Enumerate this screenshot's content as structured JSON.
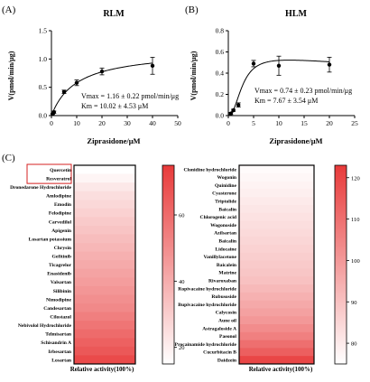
{
  "panels": {
    "A": {
      "letter": "(A)",
      "title": "RLM",
      "xlabel": "Ziprasidone/μM",
      "ylabel": "V(pmol/min/μg)",
      "annotation_line1": "Vmax = 1.16 ± 0.22 pmol/min/μg",
      "annotation_line2": "Km = 10.02 ± 4.53 μM"
    },
    "B": {
      "letter": "(B)",
      "title": "HLM",
      "xlabel": "Ziprasidone/μM",
      "ylabel": "V(pmol/min/μg)",
      "annotation_line1": "Vmax = 0.74 ± 0.23 pmol/min/μg",
      "annotation_line2": "Km = 7.67 ± 3.54 μM"
    },
    "C": {
      "letter": "(C)",
      "left_xlabel": "Relative activity(100%)",
      "right_xlabel": "Relative activity(100%)"
    }
  },
  "chart_data": [
    {
      "type": "scatter",
      "panel": "A",
      "title": "RLM",
      "xlabel": "Ziprasidone/μM",
      "ylabel": "V(pmol/min/μg)",
      "xlim": [
        0,
        50
      ],
      "ylim": [
        0,
        1.5
      ],
      "xticks": [
        0,
        10,
        20,
        30,
        40,
        50
      ],
      "yticks": [
        0.0,
        0.5,
        1.0,
        1.5
      ],
      "x": [
        0.5,
        1,
        5,
        10,
        20,
        40
      ],
      "y": [
        0.03,
        0.06,
        0.42,
        0.58,
        0.78,
        0.88
      ],
      "err": [
        0.01,
        0.02,
        0.03,
        0.05,
        0.06,
        0.15
      ],
      "fit": {
        "model": "Michaelis-Menten",
        "vmax": 1.16,
        "km": 10.02
      }
    },
    {
      "type": "scatter",
      "panel": "B",
      "title": "HLM",
      "xlabel": "Ziprasidone/μM",
      "ylabel": "V(pmol/min/μg)",
      "xlim": [
        0,
        25
      ],
      "ylim": [
        0,
        0.8
      ],
      "xticks": [
        0,
        5,
        10,
        15,
        20,
        25
      ],
      "yticks": [
        0.0,
        0.2,
        0.4,
        0.6,
        0.8
      ],
      "x": [
        0.5,
        1,
        2,
        5,
        10,
        20
      ],
      "y": [
        0.02,
        0.05,
        0.1,
        0.49,
        0.47,
        0.48
      ],
      "err": [
        0.01,
        0.01,
        0.02,
        0.03,
        0.09,
        0.07
      ],
      "fit": {
        "model": "substrate-inhibition",
        "vmax": 0.74,
        "km": 7.67
      }
    },
    {
      "type": "heatmap",
      "panel": "C-left",
      "xlabel": "Relative activity(100%)",
      "colorbar_range": [
        15,
        75
      ],
      "colorbar_ticks": [
        20,
        40,
        60
      ],
      "highlighted": [
        "Quercetin",
        "Resveratrol"
      ],
      "categories": [
        "Quercetin",
        "Resveratrol",
        "Dronedarone Hydrochloride",
        "Amlodipine",
        "Emodin",
        "Felodipine",
        "Carvedilol",
        "Apigenin",
        "Losartan potassium",
        "Chrysin",
        "Gefitinib",
        "Ticagrelor",
        "Enasidenib",
        "Valsartan",
        "Silibinin",
        "Nimodipine",
        "Candesartan",
        "Cilostazol",
        "Nebivolol Hydrochloride",
        "Telmisartan",
        "Schisandrin A",
        "Irbesartan",
        "Losartan"
      ],
      "values": [
        15,
        18,
        22,
        25,
        27,
        29,
        31,
        33,
        35,
        37,
        39,
        41,
        43,
        45,
        47,
        49,
        51,
        54,
        57,
        60,
        63,
        66,
        70
      ]
    },
    {
      "type": "heatmap",
      "panel": "C-right",
      "xlabel": "Relative activity(100%)",
      "colorbar_range": [
        75,
        123
      ],
      "colorbar_ticks": [
        80,
        90,
        100,
        110,
        120
      ],
      "categories": [
        "Clonidine hydrochloride",
        "Wogonin",
        "Quinidine",
        "Cyasterone",
        "Triptolide",
        "Baicalin",
        "Chlorogenic acid",
        "Wogonoside",
        "Azilsartan",
        "Baicalin",
        "Lidocaine",
        "Vanillylacetone",
        "Baicalein",
        "Matrine",
        "Rivaroxaban",
        "Ropivacaine hydrochloride",
        "Rubusoside",
        "Bupivacaine hydrochloride",
        "Calycosin",
        "Aune oil",
        "Astragaloside A",
        "Paeonol",
        "Procainamide hydrochloride",
        "Cucurbitacin B",
        "Daidzein"
      ],
      "values": [
        76,
        77,
        78,
        79,
        80,
        81,
        82,
        83,
        84,
        85,
        86,
        87,
        88,
        89,
        90,
        92,
        94,
        96,
        98,
        100,
        103,
        106,
        110,
        114,
        120
      ]
    }
  ]
}
